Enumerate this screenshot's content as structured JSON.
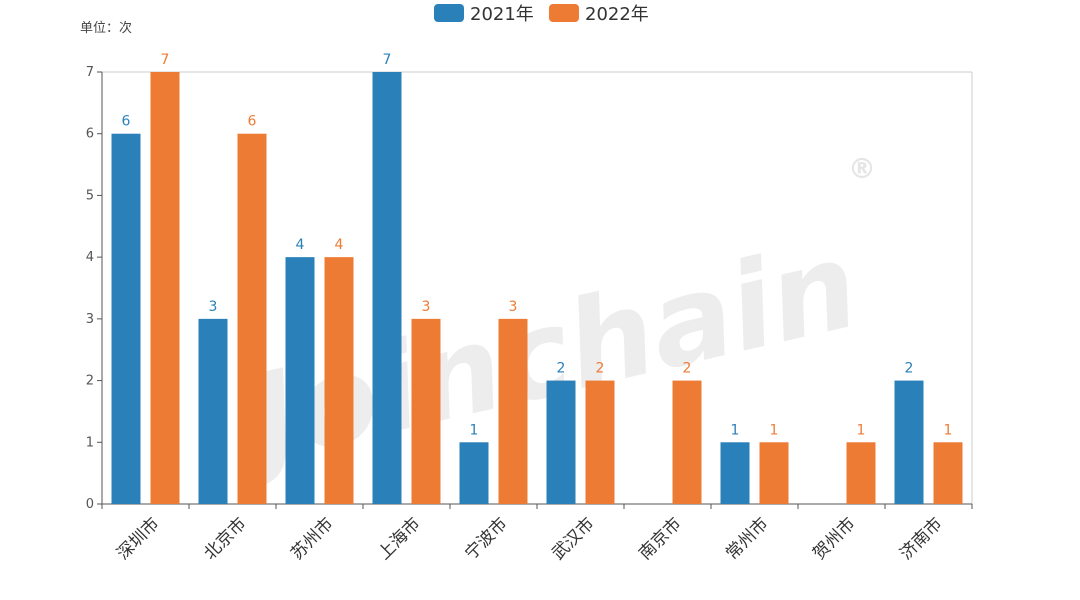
{
  "unit_label": "单位：次",
  "watermark": "Joinchain",
  "watermark_mark": "®",
  "colors": {
    "s2021": "#2a80b9",
    "s2022": "#ee7b34",
    "axis": "#555555",
    "frame": "#cccccc"
  },
  "chart_data": {
    "type": "bar",
    "categories": [
      "深圳市",
      "北京市",
      "苏州市",
      "上海市",
      "宁波市",
      "武汉市",
      "南京市",
      "常州市",
      "贺州市",
      "济南市"
    ],
    "series": [
      {
        "name": "2021年",
        "values": [
          6,
          3,
          4,
          7,
          1,
          2,
          0,
          1,
          0,
          2
        ]
      },
      {
        "name": "2022年",
        "values": [
          7,
          6,
          4,
          3,
          3,
          2,
          2,
          1,
          1,
          1
        ]
      }
    ],
    "ylim": [
      0,
      7
    ],
    "yticks": [
      0,
      1,
      2,
      3,
      4,
      5,
      6,
      7
    ],
    "legend": "top-center",
    "grid": false
  }
}
